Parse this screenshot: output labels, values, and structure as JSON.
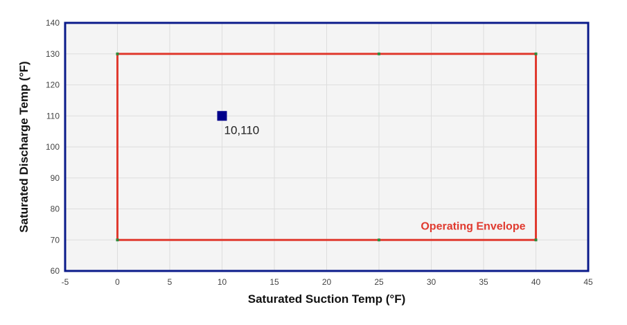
{
  "chart_data": {
    "type": "scatter",
    "title": "",
    "xlabel": "Saturated Suction Temp (°F)",
    "ylabel": "Saturated Discharge Temp (°F)",
    "xlim": [
      -5,
      45
    ],
    "ylim": [
      60,
      140
    ],
    "x_ticks": [
      -5,
      0,
      5,
      10,
      15,
      20,
      25,
      30,
      35,
      40,
      45
    ],
    "y_ticks": [
      60,
      70,
      80,
      90,
      100,
      110,
      120,
      130,
      140
    ],
    "grid": true,
    "envelope": {
      "label": "Operating Envelope",
      "color": "#e03a2f",
      "vertex_color": "#2e8b3a",
      "points": [
        {
          "x": 0,
          "y": 70
        },
        {
          "x": 0,
          "y": 130
        },
        {
          "x": 25,
          "y": 130
        },
        {
          "x": 40,
          "y": 130
        },
        {
          "x": 40,
          "y": 70
        },
        {
          "x": 25,
          "y": 70
        },
        {
          "x": 0,
          "y": 70
        }
      ]
    },
    "operating_point": {
      "x": 10,
      "y": 110,
      "label": "10,110",
      "color": "#00008b"
    }
  },
  "colors": {
    "plot_background": "#f4f4f4",
    "plot_border": "#0a1a8a",
    "grid": "#dddddd"
  }
}
